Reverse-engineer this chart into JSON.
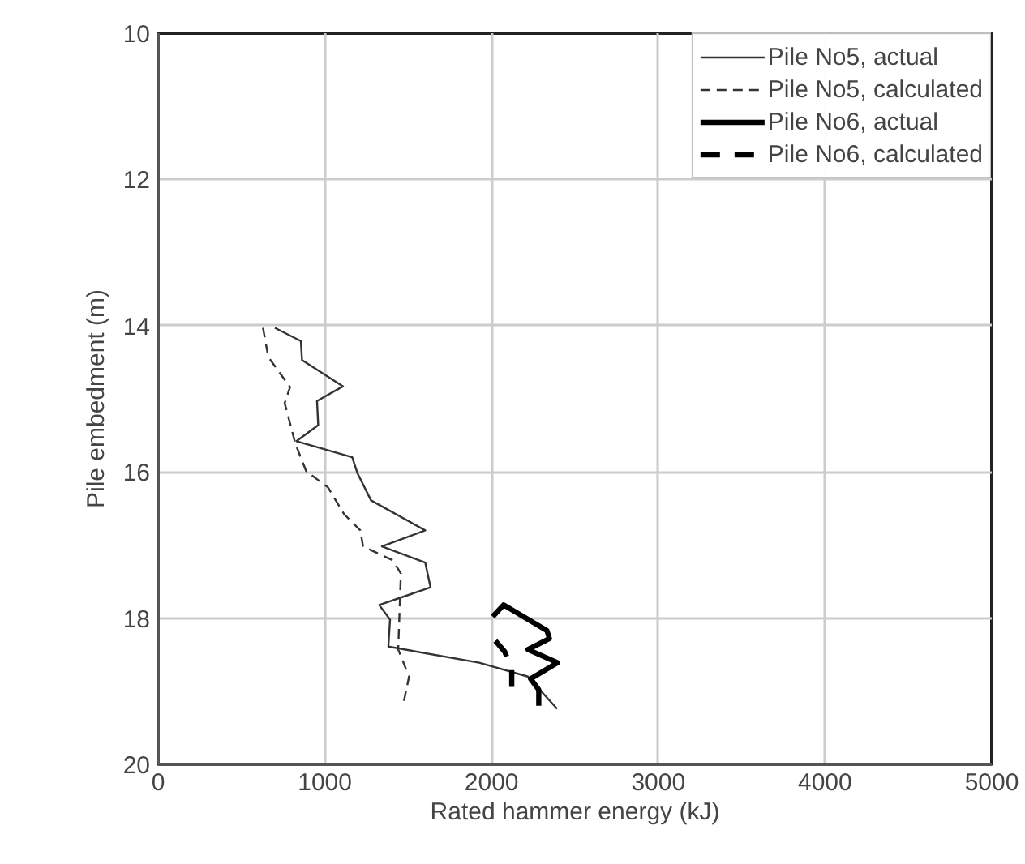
{
  "chart_data": {
    "type": "line",
    "xlabel": "Rated hammer energy (kJ)",
    "ylabel": "Pile embedment (m)",
    "xlim": [
      0,
      5000
    ],
    "xticks": [
      0,
      1000,
      2000,
      3000,
      4000,
      5000
    ],
    "ylim": [
      20,
      10
    ],
    "yticks": [
      10,
      12,
      14,
      16,
      18,
      20
    ],
    "grid": true,
    "legend": "top right",
    "marker": "none",
    "series": [
      {
        "name": "Pile No5, actual",
        "color": "#333333",
        "line_style": "solid",
        "x": [
          700,
          856,
          863,
          1109,
          953,
          960,
          830,
          1164,
          1196,
          1277,
          1602,
          1342,
          1602,
          1634,
          1326,
          1391,
          1381,
          1926,
          2218,
          2393
        ],
        "values": [
          14.03,
          14.21,
          14.47,
          14.83,
          15.03,
          15.36,
          15.58,
          15.8,
          16.02,
          16.39,
          16.8,
          17.02,
          17.24,
          17.58,
          17.82,
          18.02,
          18.39,
          18.61,
          18.8,
          19.24
        ]
      },
      {
        "name": "Pile No5, calculated",
        "color": "#333333",
        "line_style": "dashed",
        "x": [
          629,
          661,
          791,
          759,
          824,
          888,
          1018,
          1116,
          1213,
          1229,
          1408,
          1456,
          1440,
          1505,
          1472
        ],
        "values": [
          14.03,
          14.43,
          14.84,
          15.06,
          15.62,
          15.99,
          16.21,
          16.58,
          16.8,
          17.02,
          17.21,
          17.39,
          18.43,
          18.8,
          19.16
        ]
      },
      {
        "name": "Pile No6, actual",
        "color": "#000000",
        "line_style": "solid",
        "x": [
          2007,
          2072,
          2332,
          2347,
          2218,
          2396,
          2234,
          2283,
          2283
        ],
        "values": [
          17.98,
          17.82,
          18.17,
          18.28,
          18.43,
          18.61,
          18.83,
          18.98,
          19.2
        ]
      },
      {
        "name": "Pile No6, calculated",
        "color": "#000000",
        "line_style": "dashed",
        "x": [
          2023,
          2079,
          2121,
          2121
        ],
        "values": [
          18.31,
          18.46,
          18.71,
          18.94
        ]
      }
    ]
  }
}
